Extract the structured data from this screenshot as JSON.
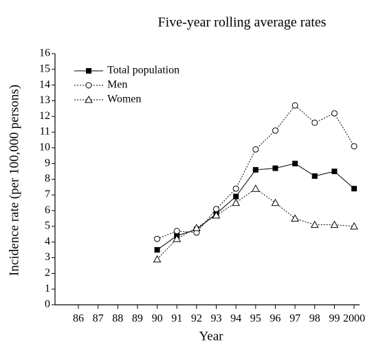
{
  "chart_data": {
    "type": "line",
    "title": "Five-year rolling average rates",
    "x_label": "Year",
    "y_label": "Incidence rate (per 100,000 persons)",
    "categories": [
      "86",
      "87",
      "88",
      "89",
      "90",
      "91",
      "92",
      "93",
      "94",
      "95",
      "96",
      "97",
      "98",
      "99",
      "2000"
    ],
    "series": [
      {
        "name": "Total population",
        "color": "#000000",
        "marker": "square",
        "dash": "solid",
        "values": [
          null,
          null,
          null,
          null,
          3.5,
          4.4,
          4.8,
          5.8,
          6.9,
          8.6,
          8.7,
          9.0,
          8.2,
          8.5,
          7.4
        ]
      },
      {
        "name": "Men",
        "color": "#000000",
        "marker": "circle",
        "dash": "dotted",
        "values": [
          null,
          null,
          null,
          null,
          4.2,
          4.7,
          4.6,
          6.1,
          7.4,
          9.9,
          11.1,
          12.7,
          11.6,
          12.2,
          10.1
        ]
      },
      {
        "name": "Women",
        "color": "#000000",
        "marker": "triangle",
        "dash": "dotted",
        "values": [
          null,
          null,
          null,
          null,
          2.9,
          4.2,
          4.9,
          5.7,
          6.5,
          7.4,
          6.5,
          5.5,
          5.1,
          5.1,
          5.0
        ]
      }
    ],
    "ylim": [
      0,
      16
    ],
    "yticks": [
      0,
      1,
      2,
      3,
      4,
      5,
      6,
      7,
      8,
      9,
      10,
      11,
      12,
      13,
      14,
      15,
      16
    ],
    "legend": "top-left"
  }
}
